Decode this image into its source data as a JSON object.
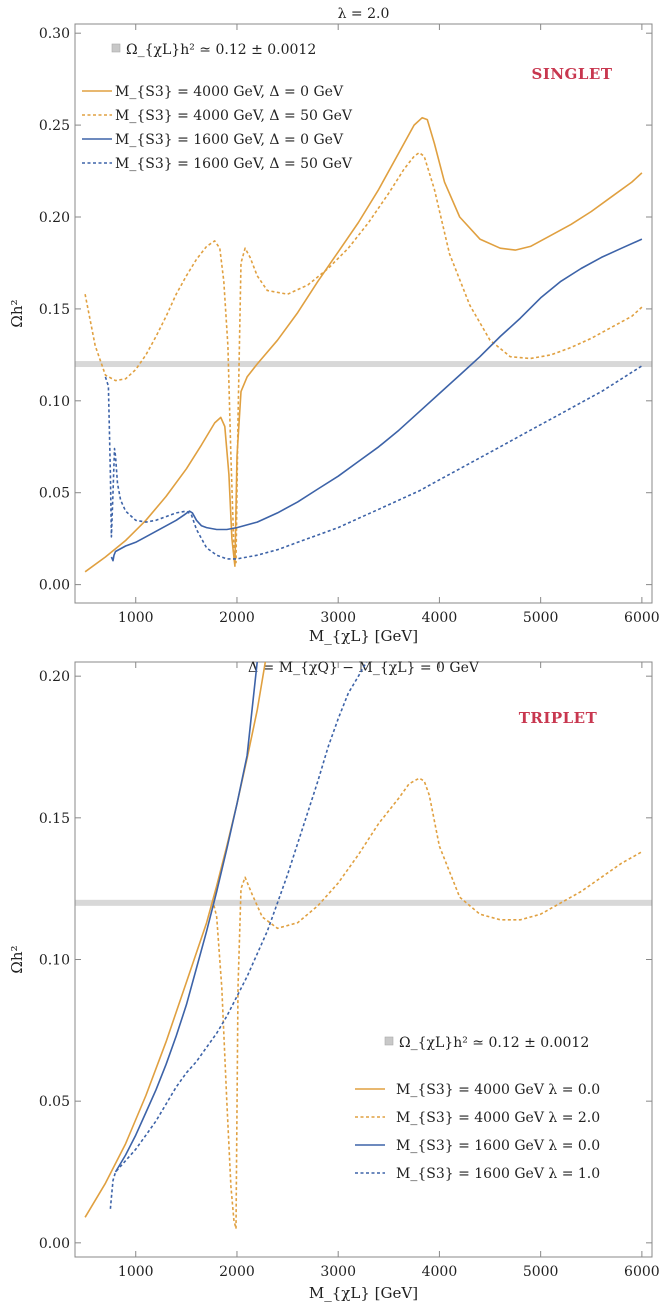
{
  "colors": {
    "orange": "#e0a040",
    "blue": "#3d63a8",
    "band": "#d8d8d8",
    "tag": "#c8374f",
    "axis": "#888888"
  },
  "chart_data": [
    {
      "type": "line",
      "title": "λ = 2.0",
      "xlabel": "M_{χL} [GeV]",
      "ylabel": "Ωh²",
      "xlim": [
        400,
        6100
      ],
      "ylim": [
        -0.01,
        0.305
      ],
      "xticks": [
        1000,
        2000,
        3000,
        4000,
        5000,
        6000
      ],
      "xtick_labels": [
        "1000",
        "2000",
        "3000",
        "4000",
        "5000",
        "6000"
      ],
      "yticks": [
        0.0,
        0.05,
        0.1,
        0.15,
        0.2,
        0.25,
        0.3
      ],
      "ytick_labels": [
        "0.00",
        "0.05",
        "0.10",
        "0.15",
        "0.20",
        "0.25",
        "0.30"
      ],
      "tag": "SINGLET",
      "band": {
        "label": "Ω_{χL}h² ≃ 0.12 ± 0.0012",
        "y": 0.12
      },
      "legend_position": "top-left",
      "series": [
        {
          "name": "M_{S3} = 4000 GeV,   Δ = 0 GeV",
          "color": "orange",
          "dash": false,
          "x": [
            500,
            700,
            900,
            1100,
            1300,
            1500,
            1650,
            1780,
            1840,
            1880,
            1920,
            1950,
            1980,
            2000,
            2040,
            2100,
            2200,
            2400,
            2600,
            2800,
            3000,
            3200,
            3400,
            3600,
            3750,
            3830,
            3880,
            3950,
            4050,
            4200,
            4400,
            4600,
            4750,
            4900,
            5100,
            5300,
            5500,
            5700,
            5900,
            6000
          ],
          "y": [
            0.007,
            0.015,
            0.024,
            0.035,
            0.048,
            0.063,
            0.076,
            0.088,
            0.091,
            0.086,
            0.06,
            0.025,
            0.01,
            0.07,
            0.105,
            0.113,
            0.12,
            0.133,
            0.148,
            0.165,
            0.181,
            0.197,
            0.215,
            0.235,
            0.25,
            0.254,
            0.253,
            0.24,
            0.219,
            0.2,
            0.188,
            0.183,
            0.182,
            0.184,
            0.19,
            0.196,
            0.203,
            0.211,
            0.219,
            0.224
          ]
        },
        {
          "name": "M_{S3} = 4000 GeV,   Δ = 50 GeV",
          "color": "orange",
          "dash": true,
          "x": [
            500,
            600,
            700,
            800,
            900,
            1000,
            1100,
            1200,
            1300,
            1400,
            1500,
            1600,
            1700,
            1780,
            1830,
            1870,
            1910,
            1940,
            1970,
            1990,
            2010,
            2040,
            2080,
            2130,
            2200,
            2300,
            2500,
            2700,
            2900,
            3100,
            3300,
            3500,
            3650,
            3750,
            3800,
            3850,
            3950,
            4100,
            4300,
            4500,
            4700,
            4900,
            5100,
            5300,
            5500,
            5700,
            5900,
            6000
          ],
          "y": [
            0.158,
            0.13,
            0.114,
            0.111,
            0.112,
            0.117,
            0.125,
            0.135,
            0.146,
            0.158,
            0.168,
            0.177,
            0.184,
            0.187,
            0.183,
            0.165,
            0.13,
            0.07,
            0.02,
            0.012,
            0.09,
            0.175,
            0.183,
            0.178,
            0.168,
            0.16,
            0.158,
            0.163,
            0.172,
            0.183,
            0.197,
            0.213,
            0.226,
            0.233,
            0.235,
            0.233,
            0.215,
            0.18,
            0.152,
            0.133,
            0.124,
            0.123,
            0.125,
            0.129,
            0.134,
            0.14,
            0.146,
            0.151
          ]
        },
        {
          "name": "M_{S3} = 1600 GeV,   Δ = 0 GeV",
          "color": "blue",
          "dash": false,
          "x": [
            760,
            775,
            785,
            800,
            900,
            1000,
            1100,
            1200,
            1300,
            1400,
            1480,
            1530,
            1560,
            1600,
            1650,
            1700,
            1800,
            1900,
            2000,
            2200,
            2400,
            2600,
            2800,
            3000,
            3200,
            3400,
            3600,
            3800,
            4000,
            4200,
            4400,
            4600,
            4800,
            5000,
            5200,
            5400,
            5600,
            5800,
            6000
          ],
          "y": [
            0.015,
            0.013,
            0.016,
            0.018,
            0.021,
            0.023,
            0.026,
            0.029,
            0.032,
            0.035,
            0.038,
            0.04,
            0.039,
            0.035,
            0.032,
            0.031,
            0.03,
            0.03,
            0.031,
            0.034,
            0.039,
            0.045,
            0.052,
            0.059,
            0.067,
            0.075,
            0.084,
            0.094,
            0.104,
            0.114,
            0.124,
            0.135,
            0.145,
            0.156,
            0.165,
            0.172,
            0.178,
            0.183,
            0.188
          ]
        },
        {
          "name": "M_{S3} = 1600 GeV,   Δ = 50 GeV",
          "color": "blue",
          "dash": true,
          "x": [
            700,
            730,
            750,
            760,
            775,
            790,
            800,
            820,
            850,
            900,
            1000,
            1100,
            1200,
            1300,
            1400,
            1500,
            1550,
            1600,
            1700,
            1800,
            1900,
            2000,
            2200,
            2400,
            2600,
            2800,
            3000,
            3200,
            3400,
            3600,
            3800,
            4000,
            4200,
            4400,
            4600,
            4800,
            5000,
            5200,
            5400,
            5600,
            5800,
            6000
          ],
          "y": [
            0.113,
            0.108,
            0.06,
            0.026,
            0.05,
            0.074,
            0.07,
            0.055,
            0.046,
            0.04,
            0.035,
            0.034,
            0.035,
            0.037,
            0.039,
            0.04,
            0.038,
            0.03,
            0.02,
            0.016,
            0.014,
            0.014,
            0.016,
            0.019,
            0.023,
            0.027,
            0.031,
            0.036,
            0.041,
            0.046,
            0.051,
            0.057,
            0.063,
            0.069,
            0.075,
            0.081,
            0.087,
            0.093,
            0.099,
            0.105,
            0.112,
            0.119
          ]
        }
      ]
    },
    {
      "type": "line",
      "title": "Δ = M_{χQ} − M_{χL} = 0 GeV",
      "xlabel": "M_{χL} [GeV]",
      "ylabel": "Ωh²",
      "xlim": [
        400,
        6100
      ],
      "ylim": [
        -0.005,
        0.205
      ],
      "xticks": [
        1000,
        2000,
        3000,
        4000,
        5000,
        6000
      ],
      "xtick_labels": [
        "1000",
        "2000",
        "3000",
        "4000",
        "5000",
        "6000"
      ],
      "yticks": [
        0.0,
        0.05,
        0.1,
        0.15,
        0.2
      ],
      "ytick_labels": [
        "0.00",
        "0.05",
        "0.10",
        "0.15",
        "0.20"
      ],
      "tag": "TRIPLET",
      "band": {
        "label": "Ω_{χL}h² ≃ 0.12 ± 0.0012",
        "y": 0.12
      },
      "legend_position": "bottom-right",
      "series": [
        {
          "name": "M_{S3} = 4000 GeV   λ = 0.0",
          "color": "orange",
          "dash": false,
          "x": [
            500,
            700,
            900,
            1100,
            1300,
            1500,
            1700,
            1800,
            1900,
            2000,
            2100,
            2200,
            2280
          ],
          "y": [
            0.009,
            0.021,
            0.035,
            0.052,
            0.071,
            0.092,
            0.113,
            0.126,
            0.14,
            0.155,
            0.171,
            0.188,
            0.205
          ]
        },
        {
          "name": "M_{S3} = 4000 GeV   λ = 2.0",
          "color": "orange",
          "dash": true,
          "x": [
            1760,
            1800,
            1850,
            1900,
            1940,
            1970,
            1990,
            2010,
            2040,
            2080,
            2150,
            2250,
            2400,
            2600,
            2800,
            3000,
            3200,
            3400,
            3600,
            3700,
            3800,
            3850,
            3900,
            4000,
            4200,
            4400,
            4600,
            4800,
            5000,
            5200,
            5400,
            5600,
            5800,
            6000
          ],
          "y": [
            0.121,
            0.115,
            0.09,
            0.05,
            0.02,
            0.008,
            0.005,
            0.09,
            0.125,
            0.129,
            0.123,
            0.115,
            0.111,
            0.113,
            0.119,
            0.127,
            0.137,
            0.148,
            0.157,
            0.162,
            0.164,
            0.163,
            0.158,
            0.14,
            0.122,
            0.116,
            0.114,
            0.114,
            0.116,
            0.12,
            0.124,
            0.129,
            0.134,
            0.138
          ]
        },
        {
          "name": "M_{S3} = 1600 GeV   λ = 0.0",
          "color": "blue",
          "dash": false,
          "x": [
            800,
            900,
            1000,
            1100,
            1200,
            1300,
            1400,
            1500,
            1600,
            1700,
            1800,
            1900,
            2000,
            2100,
            2200
          ],
          "y": [
            0.025,
            0.031,
            0.038,
            0.046,
            0.054,
            0.063,
            0.073,
            0.084,
            0.097,
            0.11,
            0.124,
            0.139,
            0.155,
            0.172,
            0.205
          ]
        },
        {
          "name": "M_{S3} = 1600 GeV   λ = 1.0",
          "color": "blue",
          "dash": true,
          "x": [
            750,
            760,
            775,
            800,
            900,
            1000,
            1100,
            1200,
            1300,
            1400,
            1500,
            1600,
            1700,
            1800,
            1900,
            2000,
            2100,
            2200,
            2300,
            2400,
            2500,
            2600,
            2700,
            2800,
            2900,
            3000,
            3100,
            3200,
            3280
          ],
          "y": [
            0.012,
            0.016,
            0.022,
            0.025,
            0.029,
            0.033,
            0.038,
            0.043,
            0.049,
            0.055,
            0.06,
            0.064,
            0.069,
            0.074,
            0.08,
            0.087,
            0.094,
            0.102,
            0.11,
            0.12,
            0.13,
            0.141,
            0.152,
            0.163,
            0.175,
            0.185,
            0.194,
            0.2,
            0.205
          ]
        }
      ]
    }
  ]
}
